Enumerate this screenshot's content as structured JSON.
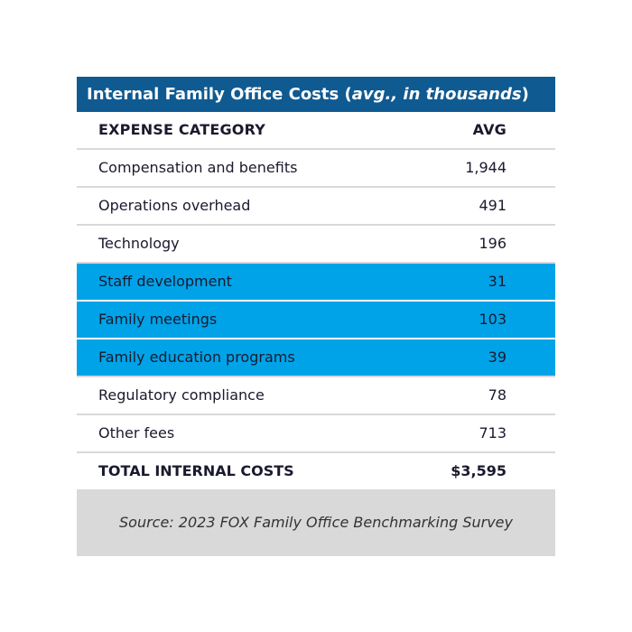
{
  "chart_data": {
    "type": "table",
    "title": {
      "prefix": "Internal Family Office Costs (",
      "italic": "avg., in thousands",
      "suffix": ")"
    },
    "columns": [
      "EXPENSE CATEGORY",
      "AVG"
    ],
    "rows": [
      {
        "category": "Compensation and benefits",
        "value": "1,944",
        "highlight": false
      },
      {
        "category": "Operations overhead",
        "value": "491",
        "highlight": false
      },
      {
        "category": "Technology",
        "value": "196",
        "highlight": false
      },
      {
        "category": "Staff development",
        "value": "31",
        "highlight": true
      },
      {
        "category": "Family meetings",
        "value": "103",
        "highlight": true
      },
      {
        "category": "Family education programs",
        "value": "39",
        "highlight": true
      },
      {
        "category": "Regulatory compliance",
        "value": "78",
        "highlight": false
      },
      {
        "category": "Other fees",
        "value": "713",
        "highlight": false
      }
    ],
    "total": {
      "label": "TOTAL INTERNAL COSTS",
      "value": "$3,595"
    },
    "source": "Source: 2023 FOX Family Office Benchmarking Survey"
  },
  "colors": {
    "title_background": "#0f5a91",
    "highlight_background": "#00a3e8",
    "divider": "#d9d9d9",
    "source_background": "#d9d9d9"
  }
}
